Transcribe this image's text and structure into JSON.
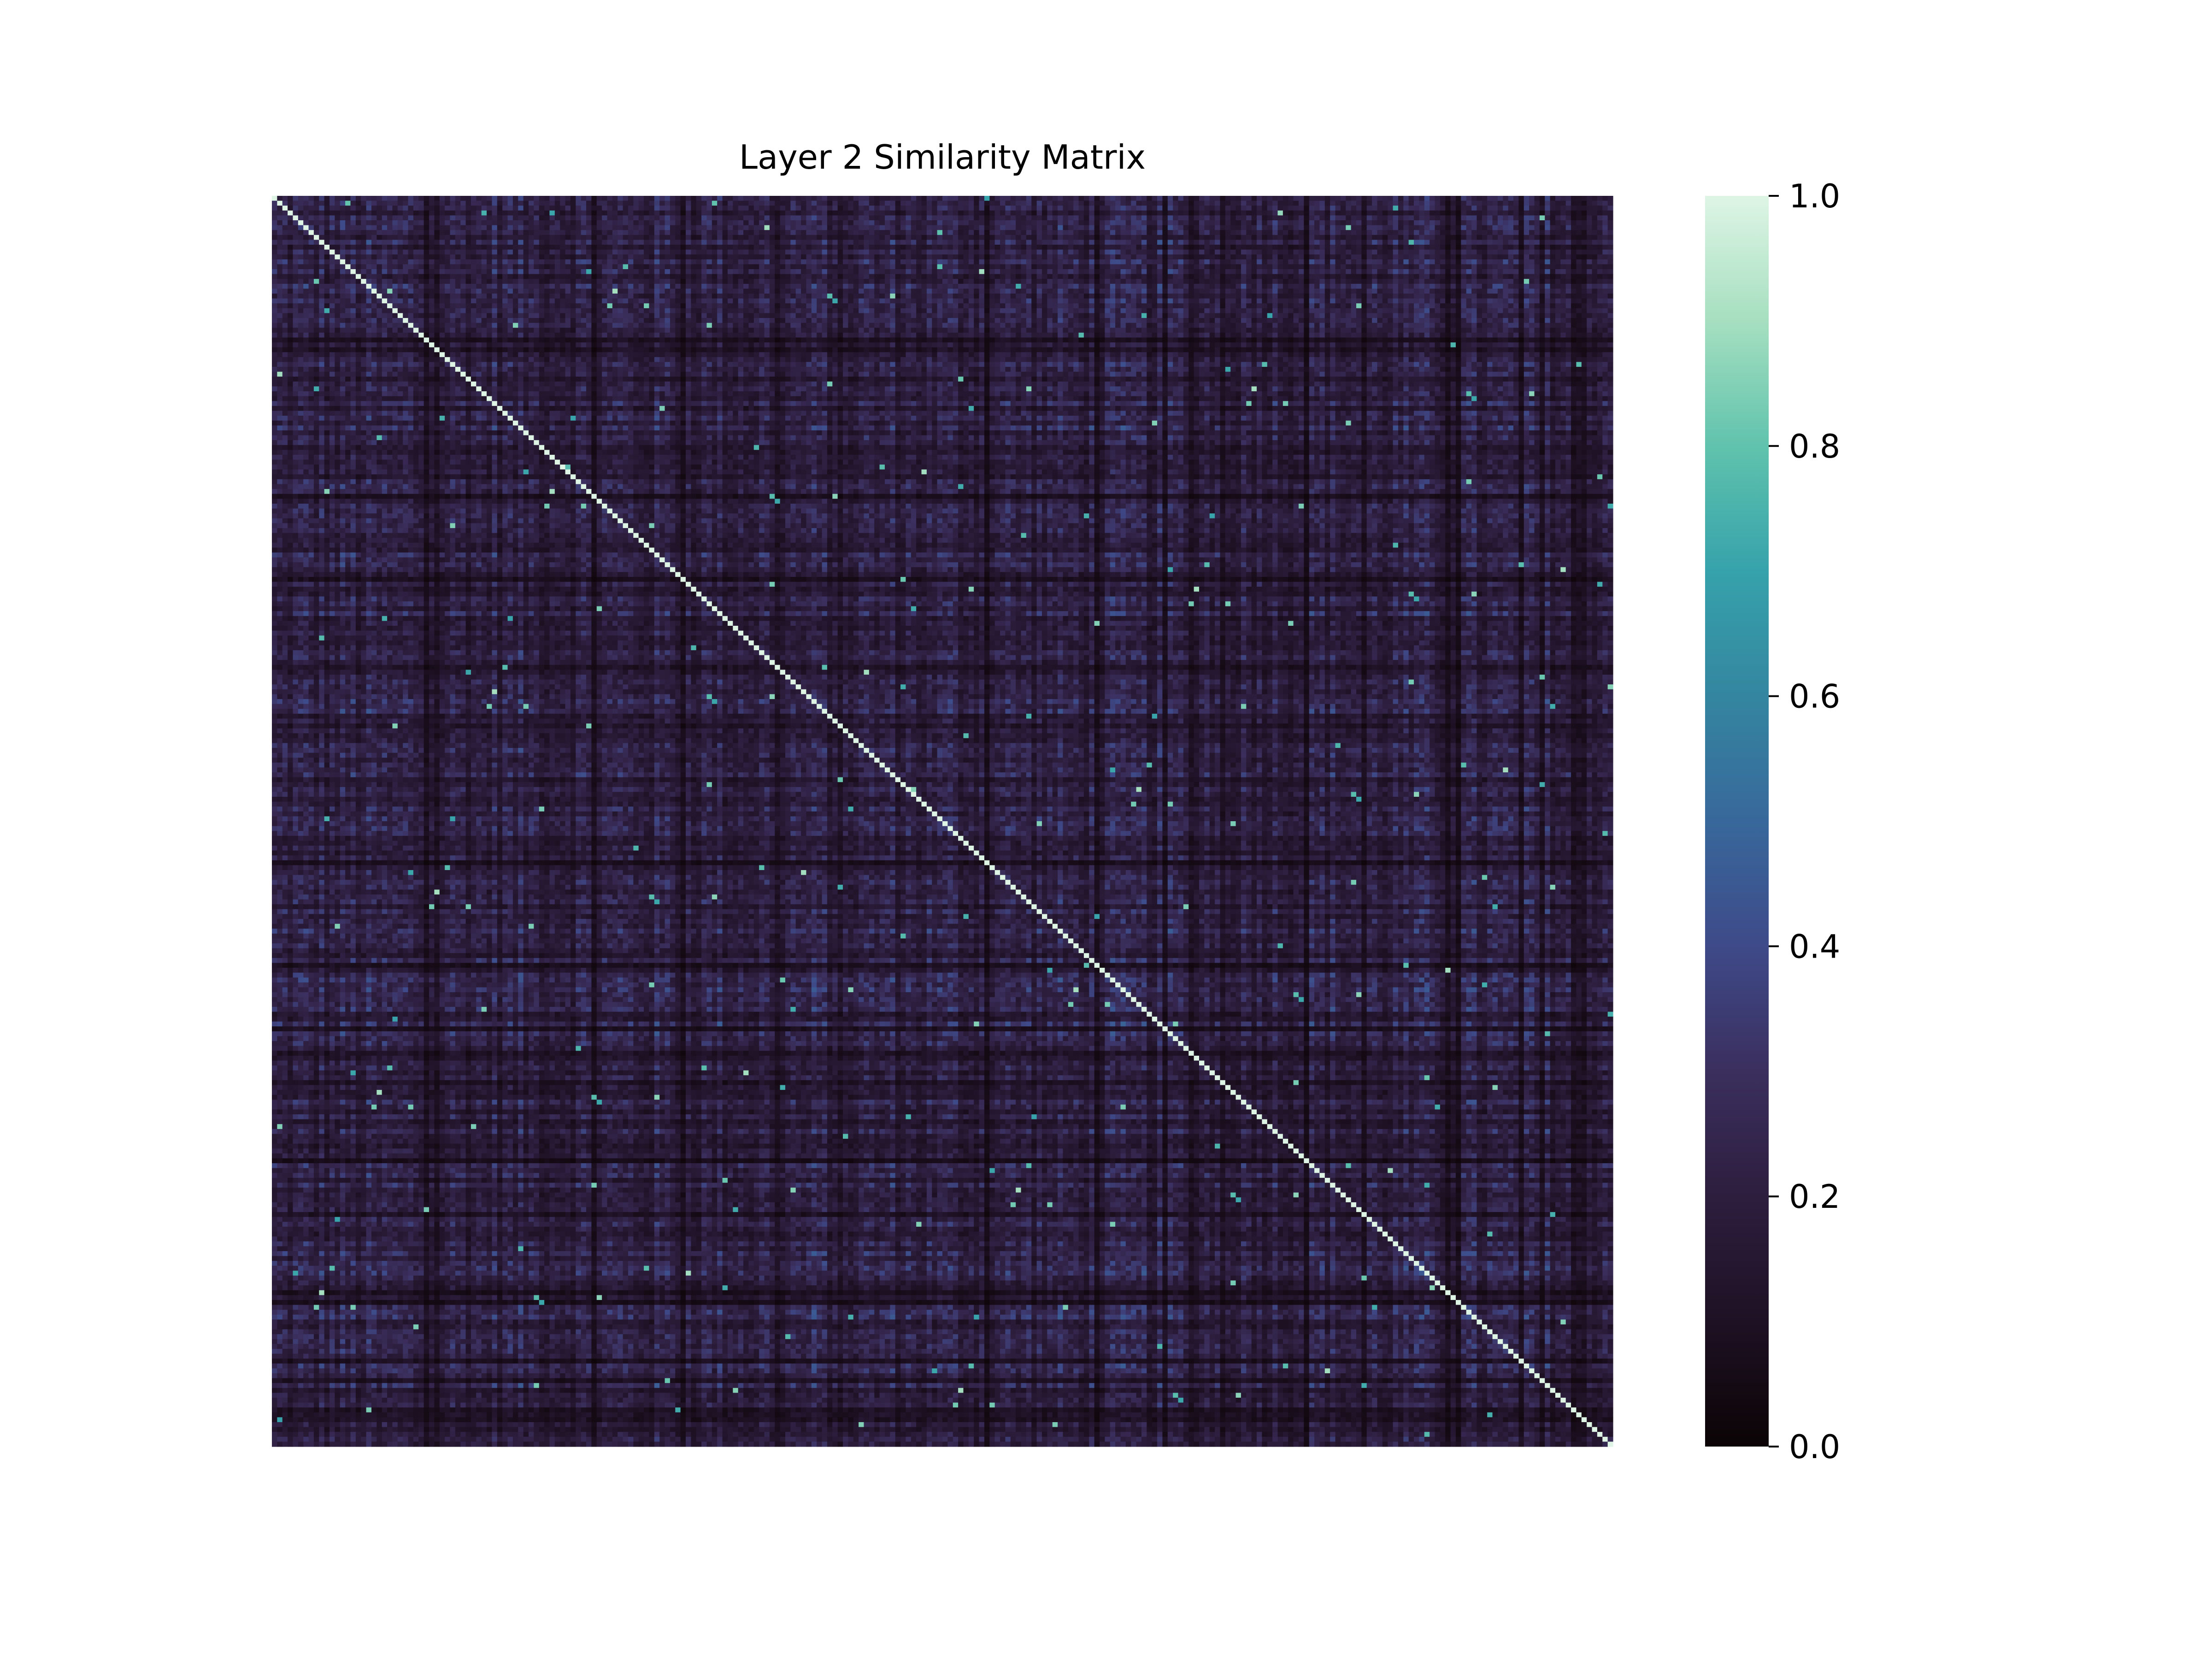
{
  "chart_data": {
    "type": "heatmap",
    "title": "Layer 2 Similarity Matrix",
    "xlabel": "",
    "ylabel": "",
    "colormap": "mako",
    "vmin": 0.0,
    "vmax": 1.0,
    "matrix_size": 256,
    "diagonal_value": 1.0,
    "off_diagonal_typical_range": [
      0.05,
      0.7
    ],
    "off_diagonal_mean": 0.3,
    "grid": false,
    "legend": "colorbar-right",
    "colorbar": {
      "ticks": [
        0.0,
        0.2,
        0.4,
        0.6,
        0.8,
        1.0
      ],
      "tick_labels": [
        "0.0",
        "0.2",
        "0.4",
        "0.6",
        "0.8",
        "1.0"
      ]
    }
  }
}
